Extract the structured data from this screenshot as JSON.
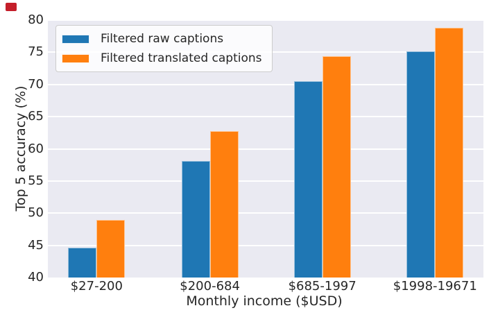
{
  "marker": {
    "color": "#c41e2a"
  },
  "chart_data": {
    "type": "bar",
    "title": "",
    "xlabel": "Monthly income ($USD)",
    "ylabel": "Top 5 accuracy (%)",
    "categories": [
      "$27-200",
      "$200-684",
      "$685-1997",
      "$1998-19671"
    ],
    "series": [
      {
        "name": "Filtered raw captions",
        "color": "#1f77b4",
        "values": [
          44.6,
          58.1,
          70.5,
          75.2
        ]
      },
      {
        "name": "Filtered translated captions",
        "color": "#ff7f0e",
        "values": [
          49.0,
          62.8,
          74.4,
          78.8
        ]
      }
    ],
    "ylim": [
      40,
      80
    ],
    "yticks": [
      40,
      45,
      50,
      55,
      60,
      65,
      70,
      75,
      80
    ],
    "grid": true,
    "grid_color": "#ffffff",
    "plot_bg": "#eaeaf2",
    "text_color": "#262626",
    "legend_position": "upper left",
    "group_centers_pct": [
      11.2,
      37.2,
      63.0,
      88.9
    ]
  }
}
